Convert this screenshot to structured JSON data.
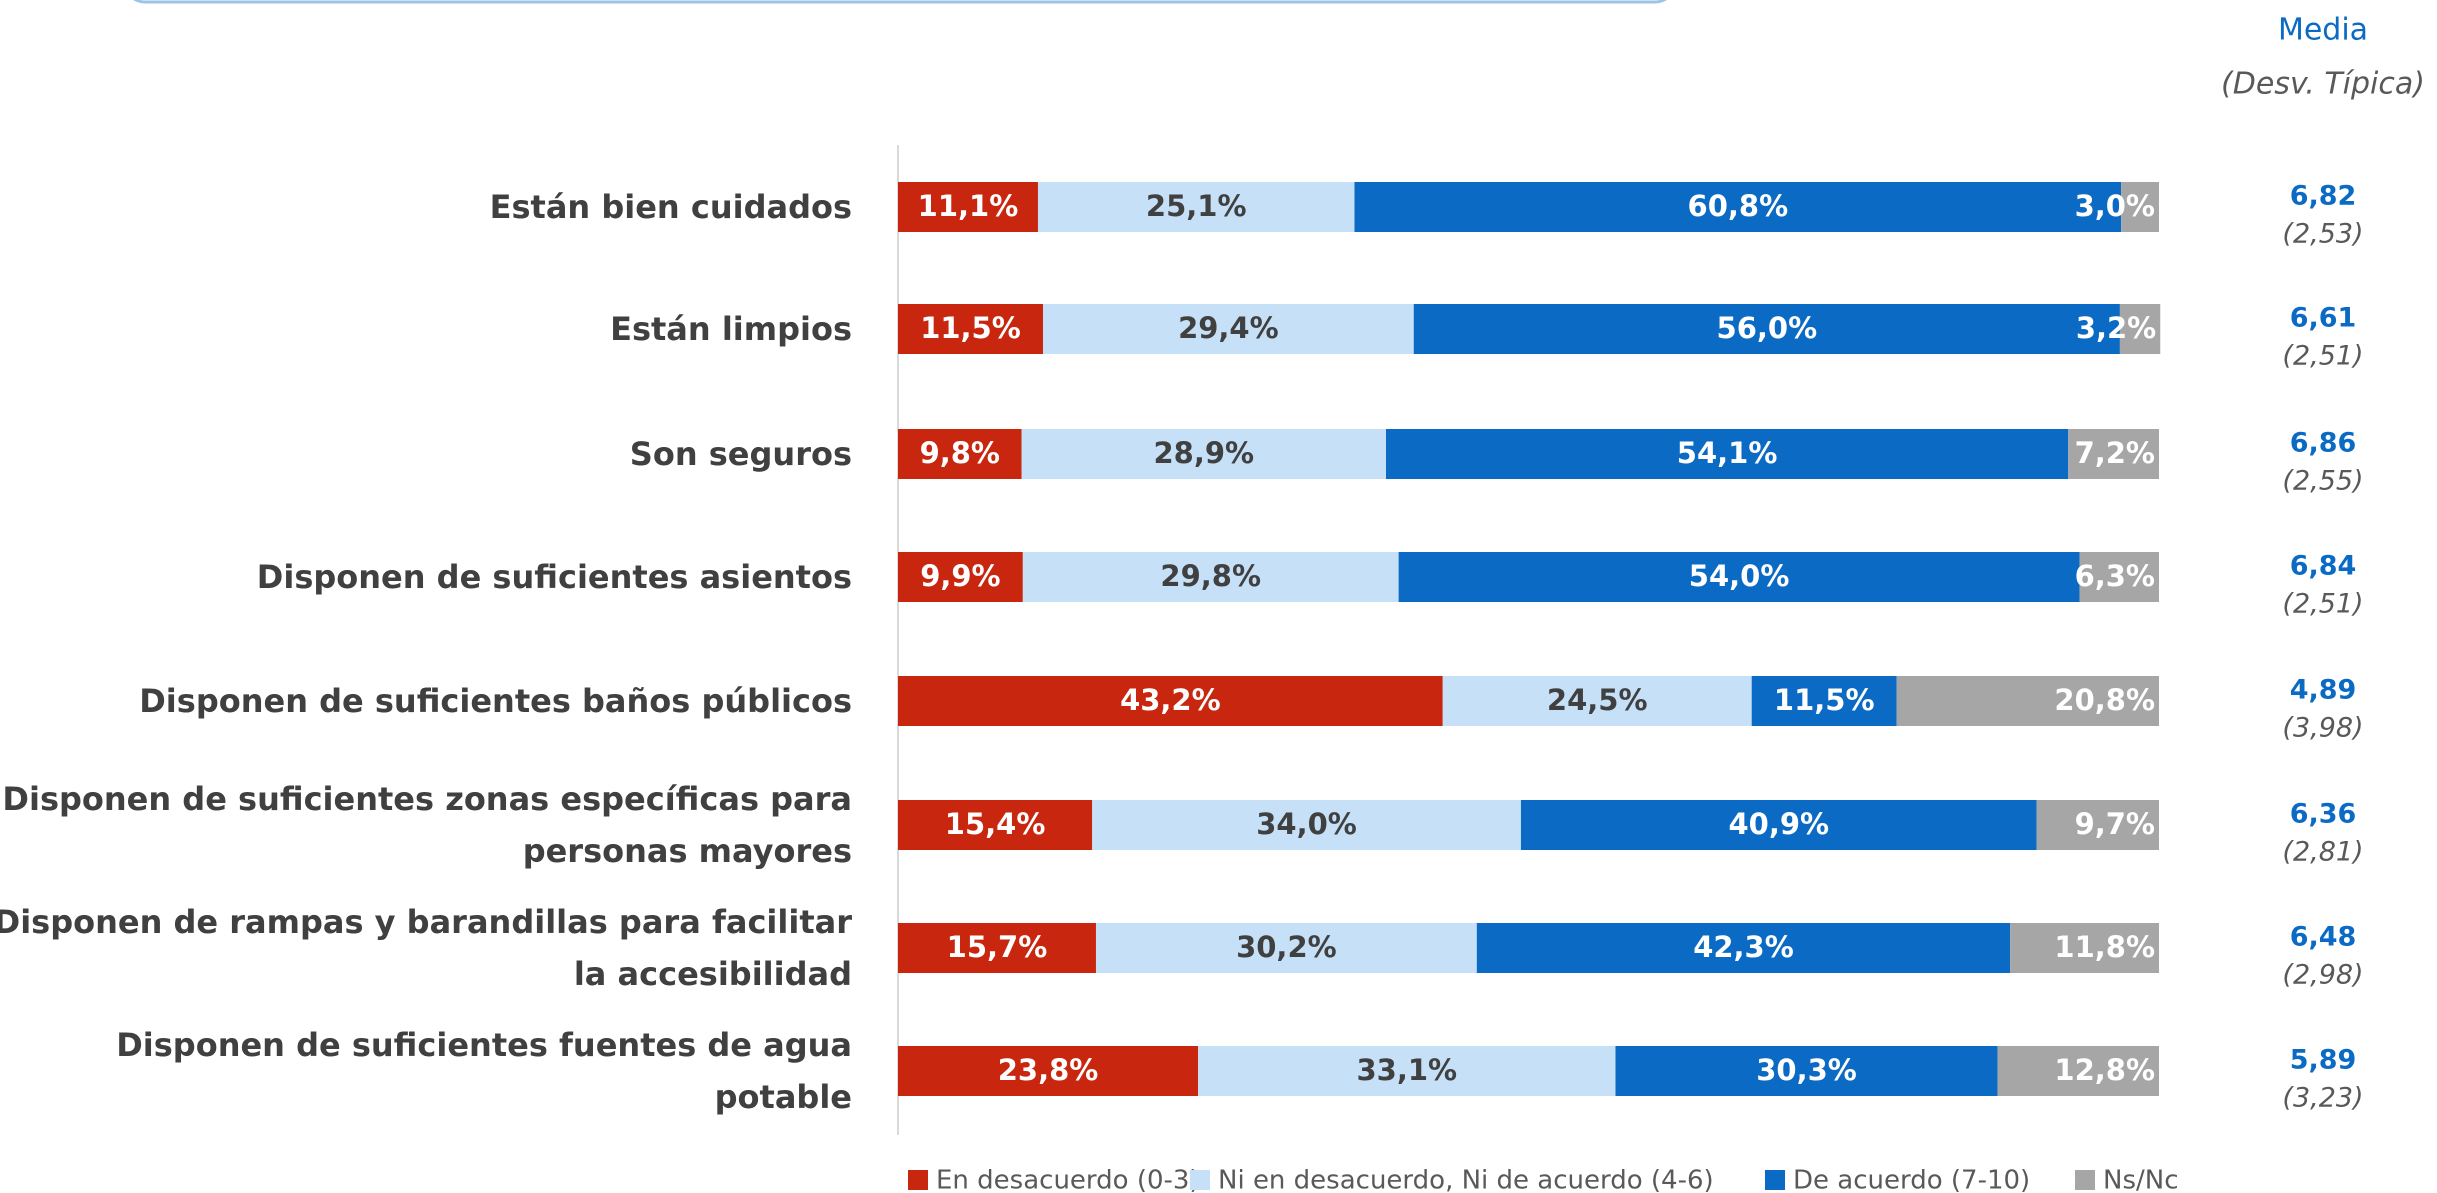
{
  "chart_data": {
    "type": "stacked-bar-horizontal",
    "categories": [
      "Están bien cuidados",
      "Están limpios",
      "Son seguros",
      "Disponen de suficientes asientos",
      "Disponen de suficientes baños públicos",
      "Disponen de suficientes zonas específicas para personas mayores",
      "Disponen de rampas y barandillas para facilitar la accesibilidad",
      "Disponen de suficientes fuentes de agua potable"
    ],
    "xlim": [
      0,
      100
    ],
    "series": [
      {
        "name": "En desacuerdo (0-3)",
        "color": "#c8260e",
        "values": [
          11.1,
          11.5,
          9.8,
          9.9,
          43.2,
          15.4,
          15.7,
          23.8
        ],
        "value_labels": [
          "11,1%",
          "11,5%",
          "9,8%",
          "9,9%",
          "43,2%",
          "15,4%",
          "15,7%",
          "23,8%"
        ]
      },
      {
        "name": "Ni en desacuerdo, Ni de acuerdo (4-6)",
        "color": "#c5e0f7",
        "values": [
          25.1,
          29.4,
          28.9,
          29.8,
          24.5,
          34.0,
          30.2,
          33.1
        ],
        "value_labels": [
          "25,1%",
          "29,4%",
          "28,9%",
          "29,8%",
          "24,5%",
          "34,0%",
          "30,2%",
          "33,1%"
        ]
      },
      {
        "name": "De acuerdo (7-10)",
        "color": "#0b6bc4",
        "values": [
          60.8,
          56.0,
          54.1,
          54.0,
          11.5,
          40.9,
          42.3,
          30.3
        ],
        "value_labels": [
          "60,8%",
          "56,0%",
          "54,1%",
          "54,0%",
          "11,5%",
          "40,9%",
          "42,3%",
          "30,3%"
        ]
      },
      {
        "name": "Ns/Nc",
        "color": "#a6a6a6",
        "values": [
          3.0,
          3.2,
          7.2,
          6.3,
          20.8,
          9.7,
          11.8,
          12.8
        ],
        "value_labels": [
          "3,0%",
          "3,2%",
          "7,2%",
          "6,3%",
          "20,8%",
          "9,7%",
          "11,8%",
          "12,8%"
        ]
      }
    ],
    "mean_header": "Media",
    "sd_header": "(Desv. Típica)",
    "mean_labels": [
      "6,82",
      "6,61",
      "6,86",
      "6,84",
      "4,89",
      "6,36",
      "6,48",
      "5,89"
    ],
    "sd_labels": [
      "(2,53)",
      "(2,51)",
      "(2,55)",
      "(2,51)",
      "(3,98)",
      "(2,81)",
      "(2,98)",
      "(3,23)"
    ]
  }
}
